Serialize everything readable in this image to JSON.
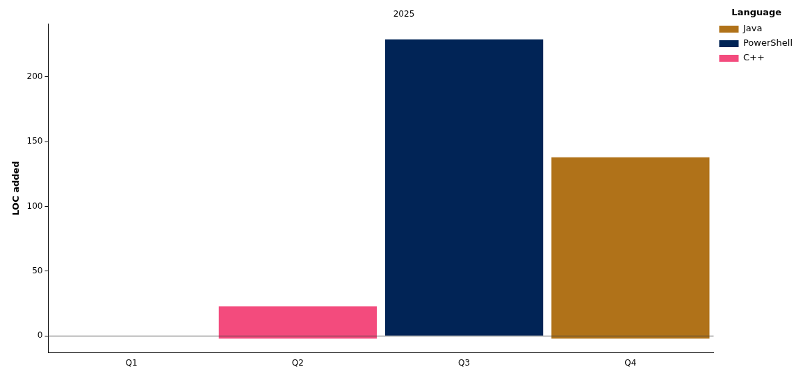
{
  "chart_data": {
    "type": "bar",
    "title": "2025",
    "ylabel": "LOC added",
    "legend_title": "Language",
    "categories": [
      "Q1",
      "Q2",
      "Q3",
      "Q4"
    ],
    "series": [
      {
        "name": "Java",
        "color": "#b07219",
        "values": [
          null,
          null,
          null,
          140
        ],
        "base": [
          null,
          null,
          null,
          -2
        ]
      },
      {
        "name": "PowerShell",
        "color": "#012456",
        "values": [
          null,
          null,
          229,
          null
        ],
        "base": [
          null,
          null,
          0,
          null
        ]
      },
      {
        "name": "C++",
        "color": "#f34b7d",
        "values": [
          null,
          25,
          null,
          null
        ],
        "base": [
          null,
          -2,
          null,
          null
        ]
      }
    ],
    "ylim": [
      -13,
      241
    ],
    "yticks": [
      0,
      50,
      100,
      150,
      200
    ],
    "grid": false,
    "legend": "top right",
    "ref_lines": [
      {
        "axis": "y",
        "value": 0,
        "color": "#444444"
      }
    ]
  }
}
